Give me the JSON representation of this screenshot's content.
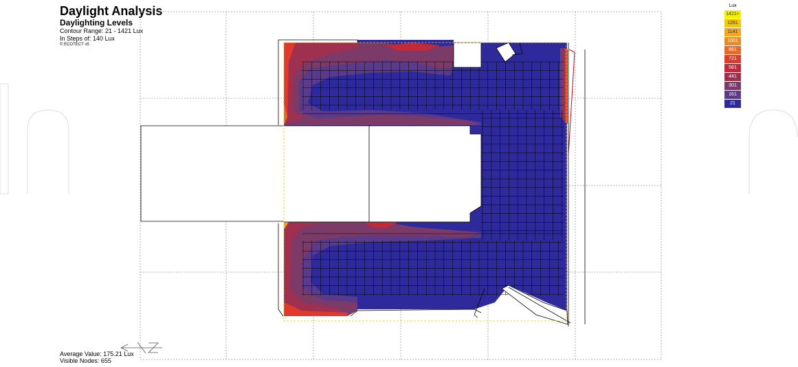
{
  "header": {
    "title": "Daylight Analysis",
    "subtitle": "Daylighting Levels",
    "range": "Contour Range: 21 - 1421 Lux",
    "steps": "In Steps of: 140 Lux",
    "credit": "© ECOTECT v5"
  },
  "footer": {
    "average": "Average Value: 175.21 Lux",
    "nodes": "Visible Nodes: 655"
  },
  "legend": {
    "title": "Lux",
    "items": [
      {
        "label": "1421+",
        "color": "#f6f000",
        "text": "#333333"
      },
      {
        "label": "1281",
        "color": "#f5c800",
        "text": "#333333"
      },
      {
        "label": "1141",
        "color": "#f2a81e",
        "text": "#333333"
      },
      {
        "label": "1001",
        "color": "#ee8a22",
        "text": "#ffffff"
      },
      {
        "label": "861",
        "color": "#e96a27",
        "text": "#ffffff"
      },
      {
        "label": "721",
        "color": "#e03a2d",
        "text": "#ffffff"
      },
      {
        "label": "581",
        "color": "#c22a3a",
        "text": "#ffffff"
      },
      {
        "label": "441",
        "color": "#a0304f",
        "text": "#ffffff"
      },
      {
        "label": "301",
        "color": "#7c3a68",
        "text": "#ffffff"
      },
      {
        "label": "161",
        "color": "#5a3a8a",
        "text": "#ffffff"
      },
      {
        "label": "21",
        "color": "#2e2a9c",
        "text": "#ffffff"
      }
    ]
  },
  "colors": {
    "base": "#2e2a9c",
    "grid": "#000000",
    "outline": "#000000",
    "dashed": "#999999",
    "yellow_dash": "#e8c800"
  }
}
